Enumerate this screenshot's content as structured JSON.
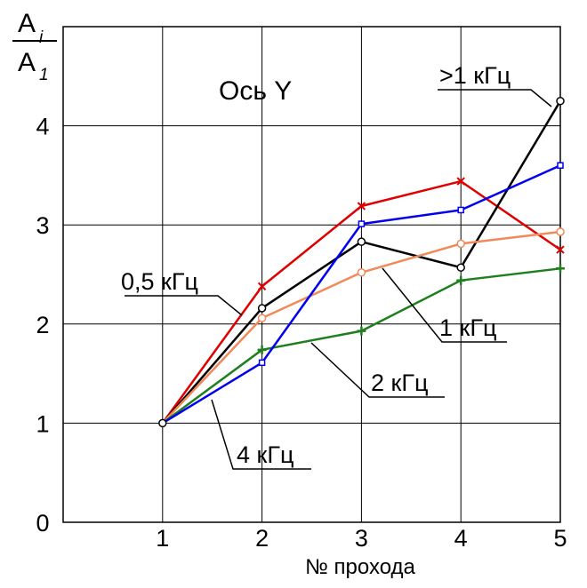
{
  "chart_data": {
    "type": "line",
    "title": "Ось Y",
    "xlabel": "№ прохода",
    "ylabel": {
      "num_main": "A",
      "num_sub": "i",
      "den_main": "A",
      "den_sub": "1"
    },
    "x": [
      1,
      2,
      3,
      4,
      5
    ],
    "xlim": [
      0,
      5
    ],
    "ylim": [
      0,
      5
    ],
    "xticks": [
      "1",
      "2",
      "3",
      "4",
      "5"
    ],
    "yticks": [
      "0",
      "1",
      "2",
      "3",
      "4"
    ],
    "grid": true,
    "series": [
      {
        "name": "0,5 кГц",
        "color": "#e00000",
        "marker": "x",
        "values": [
          1,
          2.38,
          3.19,
          3.44,
          2.75
        ]
      },
      {
        "name": ">1 кГц",
        "color": "#000000",
        "marker": "circle",
        "values": [
          1,
          2.16,
          2.83,
          2.57,
          4.25
        ]
      },
      {
        "name": "1 кГц",
        "color": "#f08a5a",
        "marker": "circle",
        "values": [
          1,
          2.06,
          2.52,
          2.81,
          2.93
        ]
      },
      {
        "name": "2 кГц",
        "color": "#1e7f1e",
        "marker": "plus",
        "values": [
          1,
          1.74,
          1.93,
          2.44,
          2.56
        ]
      },
      {
        "name": "4 кГц",
        "color": "#0000ee",
        "marker": "square",
        "values": [
          1,
          1.61,
          3.01,
          3.15,
          3.6
        ]
      }
    ]
  }
}
